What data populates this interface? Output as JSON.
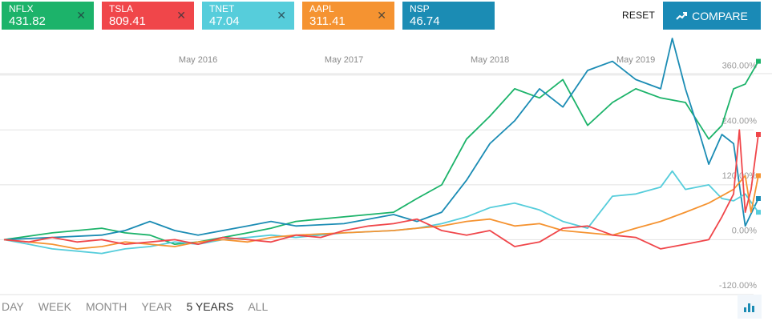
{
  "tickers": [
    {
      "symbol": "NFLX",
      "price": "431.82",
      "color": "#1cb36a"
    },
    {
      "symbol": "TSLA",
      "price": "809.41",
      "color": "#f0464a"
    },
    {
      "symbol": "TNET",
      "price": "47.04",
      "color": "#56cddb"
    },
    {
      "symbol": "AAPL",
      "price": "311.41",
      "color": "#f59331"
    },
    {
      "symbol": "NSP",
      "price": "46.74",
      "color": "#1b8cb4"
    }
  ],
  "close_icon": "close-icon",
  "actions": {
    "reset_label": "RESET",
    "compare_label": "COMPARE",
    "compare_icon": "trend-up-icon"
  },
  "periods": [
    "DAY",
    "WEEK",
    "MONTH",
    "YEAR",
    "5 YEARS",
    "ALL"
  ],
  "active_period": "5 YEARS",
  "chart_type_icon": "bar-chart-icon",
  "chart_data": {
    "type": "line",
    "x_range": [
      2015.0,
      2020.17
    ],
    "x_ticks": [
      {
        "x": 2016.33,
        "label": "May 2016"
      },
      {
        "x": 2017.33,
        "label": "May 2017"
      },
      {
        "x": 2018.33,
        "label": "May 2018"
      },
      {
        "x": 2019.33,
        "label": "May 2019"
      }
    ],
    "y_range": [
      -120,
      440
    ],
    "y_ticks": [
      {
        "y": 360,
        "label": "360.00%"
      },
      {
        "y": 240,
        "label": "240.00%"
      },
      {
        "y": 120,
        "label": "120.00%"
      },
      {
        "y": 0,
        "label": "0.00%"
      },
      {
        "y": -120,
        "label": "-120.00%"
      }
    ],
    "grid": true,
    "series": [
      {
        "name": "NFLX",
        "color": "#1cb36a",
        "points": [
          [
            2015.0,
            0
          ],
          [
            2015.33,
            15
          ],
          [
            2015.67,
            25
          ],
          [
            2015.83,
            15
          ],
          [
            2016.0,
            10
          ],
          [
            2016.17,
            -10
          ],
          [
            2016.33,
            -5
          ],
          [
            2016.67,
            15
          ],
          [
            2016.83,
            25
          ],
          [
            2017.0,
            40
          ],
          [
            2017.33,
            50
          ],
          [
            2017.67,
            60
          ],
          [
            2017.83,
            90
          ],
          [
            2018.0,
            120
          ],
          [
            2018.17,
            220
          ],
          [
            2018.33,
            270
          ],
          [
            2018.5,
            330
          ],
          [
            2018.67,
            310
          ],
          [
            2018.83,
            350
          ],
          [
            2019.0,
            250
          ],
          [
            2019.17,
            300
          ],
          [
            2019.33,
            330
          ],
          [
            2019.5,
            310
          ],
          [
            2019.67,
            300
          ],
          [
            2019.83,
            220
          ],
          [
            2019.92,
            250
          ],
          [
            2020.0,
            330
          ],
          [
            2020.08,
            340
          ],
          [
            2020.17,
            390
          ]
        ]
      },
      {
        "name": "NSP",
        "color": "#1b8cb4",
        "points": [
          [
            2015.0,
            0
          ],
          [
            2015.33,
            5
          ],
          [
            2015.67,
            10
          ],
          [
            2015.83,
            20
          ],
          [
            2016.0,
            40
          ],
          [
            2016.17,
            20
          ],
          [
            2016.33,
            10
          ],
          [
            2016.67,
            30
          ],
          [
            2016.83,
            40
          ],
          [
            2017.0,
            30
          ],
          [
            2017.33,
            35
          ],
          [
            2017.67,
            55
          ],
          [
            2017.83,
            40
          ],
          [
            2018.0,
            60
          ],
          [
            2018.17,
            130
          ],
          [
            2018.33,
            210
          ],
          [
            2018.5,
            260
          ],
          [
            2018.67,
            330
          ],
          [
            2018.83,
            290
          ],
          [
            2019.0,
            370
          ],
          [
            2019.17,
            390
          ],
          [
            2019.33,
            350
          ],
          [
            2019.5,
            330
          ],
          [
            2019.58,
            440
          ],
          [
            2019.67,
            330
          ],
          [
            2019.75,
            250
          ],
          [
            2019.83,
            165
          ],
          [
            2019.92,
            230
          ],
          [
            2020.0,
            210
          ],
          [
            2020.08,
            30
          ],
          [
            2020.17,
            90
          ]
        ]
      },
      {
        "name": "TNET",
        "color": "#56cddb",
        "points": [
          [
            2015.0,
            0
          ],
          [
            2015.17,
            -10
          ],
          [
            2015.33,
            -20
          ],
          [
            2015.5,
            -25
          ],
          [
            2015.67,
            -30
          ],
          [
            2015.83,
            -20
          ],
          [
            2016.0,
            -15
          ],
          [
            2016.17,
            -5
          ],
          [
            2016.33,
            -10
          ],
          [
            2016.5,
            0
          ],
          [
            2016.67,
            5
          ],
          [
            2016.83,
            10
          ],
          [
            2017.0,
            5
          ],
          [
            2017.33,
            15
          ],
          [
            2017.67,
            20
          ],
          [
            2017.83,
            25
          ],
          [
            2018.0,
            35
          ],
          [
            2018.17,
            50
          ],
          [
            2018.33,
            70
          ],
          [
            2018.5,
            80
          ],
          [
            2018.67,
            65
          ],
          [
            2018.83,
            40
          ],
          [
            2019.0,
            25
          ],
          [
            2019.17,
            95
          ],
          [
            2019.33,
            100
          ],
          [
            2019.5,
            115
          ],
          [
            2019.58,
            150
          ],
          [
            2019.67,
            110
          ],
          [
            2019.83,
            120
          ],
          [
            2019.92,
            90
          ],
          [
            2020.0,
            85
          ],
          [
            2020.08,
            100
          ],
          [
            2020.17,
            60
          ]
        ]
      },
      {
        "name": "AAPL",
        "color": "#f59331",
        "points": [
          [
            2015.0,
            0
          ],
          [
            2015.17,
            -5
          ],
          [
            2015.33,
            -10
          ],
          [
            2015.5,
            -20
          ],
          [
            2015.67,
            -15
          ],
          [
            2015.83,
            -5
          ],
          [
            2016.0,
            -10
          ],
          [
            2016.17,
            -15
          ],
          [
            2016.33,
            -5
          ],
          [
            2016.5,
            0
          ],
          [
            2016.67,
            -5
          ],
          [
            2016.83,
            5
          ],
          [
            2017.0,
            10
          ],
          [
            2017.33,
            15
          ],
          [
            2017.67,
            20
          ],
          [
            2017.83,
            25
          ],
          [
            2018.0,
            30
          ],
          [
            2018.17,
            40
          ],
          [
            2018.33,
            45
          ],
          [
            2018.5,
            30
          ],
          [
            2018.67,
            35
          ],
          [
            2018.83,
            20
          ],
          [
            2019.0,
            15
          ],
          [
            2019.17,
            10
          ],
          [
            2019.33,
            25
          ],
          [
            2019.5,
            40
          ],
          [
            2019.67,
            60
          ],
          [
            2019.83,
            80
          ],
          [
            2020.0,
            110
          ],
          [
            2020.08,
            140
          ],
          [
            2020.12,
            60
          ],
          [
            2020.17,
            140
          ]
        ]
      },
      {
        "name": "TSLA",
        "color": "#f0464a",
        "points": [
          [
            2015.0,
            0
          ],
          [
            2015.17,
            -5
          ],
          [
            2015.33,
            5
          ],
          [
            2015.5,
            -5
          ],
          [
            2015.67,
            0
          ],
          [
            2015.83,
            -10
          ],
          [
            2016.0,
            -5
          ],
          [
            2016.17,
            0
          ],
          [
            2016.33,
            -10
          ],
          [
            2016.5,
            5
          ],
          [
            2016.67,
            0
          ],
          [
            2016.83,
            -5
          ],
          [
            2017.0,
            10
          ],
          [
            2017.17,
            5
          ],
          [
            2017.33,
            20
          ],
          [
            2017.5,
            30
          ],
          [
            2017.67,
            35
          ],
          [
            2017.83,
            45
          ],
          [
            2018.0,
            20
          ],
          [
            2018.17,
            10
          ],
          [
            2018.33,
            20
          ],
          [
            2018.5,
            -15
          ],
          [
            2018.67,
            -5
          ],
          [
            2018.83,
            25
          ],
          [
            2019.0,
            30
          ],
          [
            2019.17,
            10
          ],
          [
            2019.33,
            5
          ],
          [
            2019.5,
            -20
          ],
          [
            2019.67,
            -10
          ],
          [
            2019.83,
            0
          ],
          [
            2019.92,
            50
          ],
          [
            2020.0,
            100
          ],
          [
            2020.04,
            240
          ],
          [
            2020.08,
            60
          ],
          [
            2020.12,
            110
          ],
          [
            2020.17,
            230
          ]
        ]
      }
    ]
  }
}
